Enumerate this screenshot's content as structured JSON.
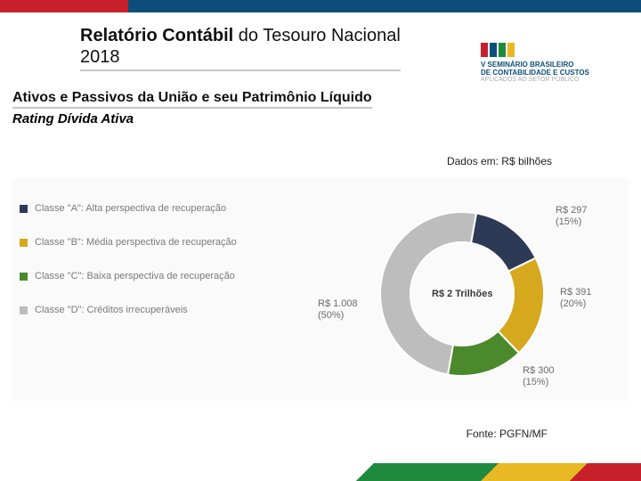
{
  "header": {
    "title_bold": "Relatório Contábil",
    "title_rest": " do Tesouro Nacional 2018",
    "logo_line1": "V SEMINÁRIO BRASILEIRO",
    "logo_line2": "DE CONTABILIDADE E CUSTOS",
    "logo_line3": "APLICADOS AO SETOR PÚBLICO"
  },
  "subheading": {
    "line": "Ativos e Passivos da União e seu Patrimônio Líquido",
    "rating": "Rating Dívida Ativa"
  },
  "units": "Dados em: R$ bilhões",
  "source": "Fonte: PGFN/MF",
  "chart": {
    "type": "donut",
    "background_color": "#fafafa",
    "ring_bg": "#bdbdbd",
    "center_label": "R$ 2 Trilhões",
    "inner_radius": 58,
    "outer_radius": 92,
    "series": [
      {
        "key": "A",
        "legend": "Classe \"A\": Alta perspectiva de recuperação",
        "value": 297,
        "pct": 15,
        "color": "#2d3a56",
        "label_value": "R$ 297",
        "label_pct": "(15%)"
      },
      {
        "key": "B",
        "legend": "Classe \"B\": Média perspectiva de recuperação",
        "value": 391,
        "pct": 20,
        "color": "#d6a81d",
        "label_value": "R$ 391",
        "label_pct": "(20%)"
      },
      {
        "key": "C",
        "legend": "Classe \"C\": Baixa perspectiva de recuperação",
        "value": 300,
        "pct": 15,
        "color": "#4b8a2c",
        "label_value": "R$ 300",
        "label_pct": "(15%)"
      },
      {
        "key": "D",
        "legend": "Classe \"D\": Créditos irrecuperáveis",
        "value": 1008,
        "pct": 50,
        "color": "#bdbdbd",
        "label_value": "R$ 1.008",
        "label_pct": "(50%)"
      }
    ],
    "legend_text_color": "#7a7a7a",
    "legend_fontsize": 11,
    "label_text_color": "#6b6b6b",
    "label_fontsize": 11
  },
  "palette": {
    "accent_red": "#c8202b",
    "accent_blue": "#0d4f7a",
    "accent_green": "#1f8a3e",
    "accent_yellow": "#e8b923",
    "rule": "#c7c7cd"
  }
}
